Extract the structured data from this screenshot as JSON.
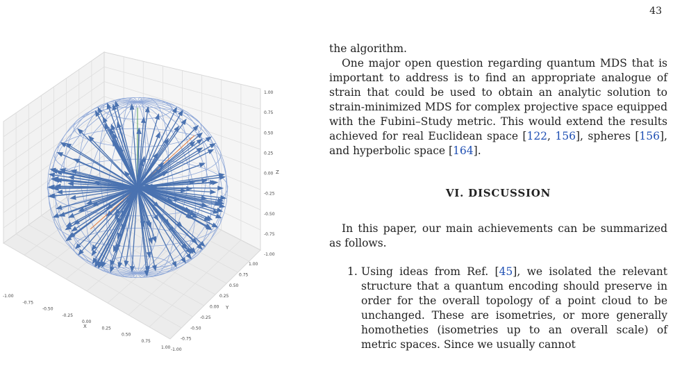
{
  "page_number": "43",
  "text": {
    "line1": "the algorithm.",
    "para1_before_cite1": "One major open question regarding quantum MDS that is important to address is to find an appropriate analogue of strain that could be used to obtain an analytic solution to strain-minimized MDS for complex projective space equipped with the Fubini–Study metric. This would extend the results achieved for real Euclidean space [",
    "cite_122": "122",
    "sep_a": ", ",
    "cite_156a": "156",
    "mid_a": "], spheres [",
    "cite_156b": "156",
    "mid_b": "], and hyperbolic space [",
    "cite_164": "164",
    "end_a": "].",
    "section_heading": "VI.   DISCUSSION",
    "para2": "In this paper, our main achievements can be summarized as follows.",
    "item1_num": "1.",
    "item1_before": "Using ideas from Ref. [",
    "cite_45": "45",
    "item1_after": "], we isolated the relevant structure that a quantum encoding should preserve in order for the overall topology of a point cloud to be unchanged. These are isometries, or more generally homotheties (isometries up to an overall scale) of metric spaces. Since we usually cannot"
  },
  "figure": {
    "axis_labels": {
      "x": "X",
      "y": "Y",
      "z": "Z"
    },
    "x_ticks": [
      "-1.00",
      "-0.75",
      "-0.50",
      "-0.25",
      "0.00",
      "0.25",
      "0.50",
      "0.75",
      "1.00"
    ],
    "y_ticks": [
      "-1.00",
      "-0.75",
      "-0.50",
      "-0.25",
      "0.00",
      "0.25",
      "0.50",
      "0.75",
      "1.00"
    ],
    "z_ticks": [
      "1.00",
      "0.75",
      "0.50",
      "0.25",
      "0.00",
      "-0.25",
      "-0.50",
      "-0.75",
      "-1.00"
    ],
    "colors": {
      "vectors": "#4a72b0",
      "wireframe": "#8fa8d8",
      "axis_x": "#e0783a",
      "axis_y": "#5aa05a",
      "pane": "#f0f0f0",
      "grid": "#dcdcdc"
    }
  }
}
